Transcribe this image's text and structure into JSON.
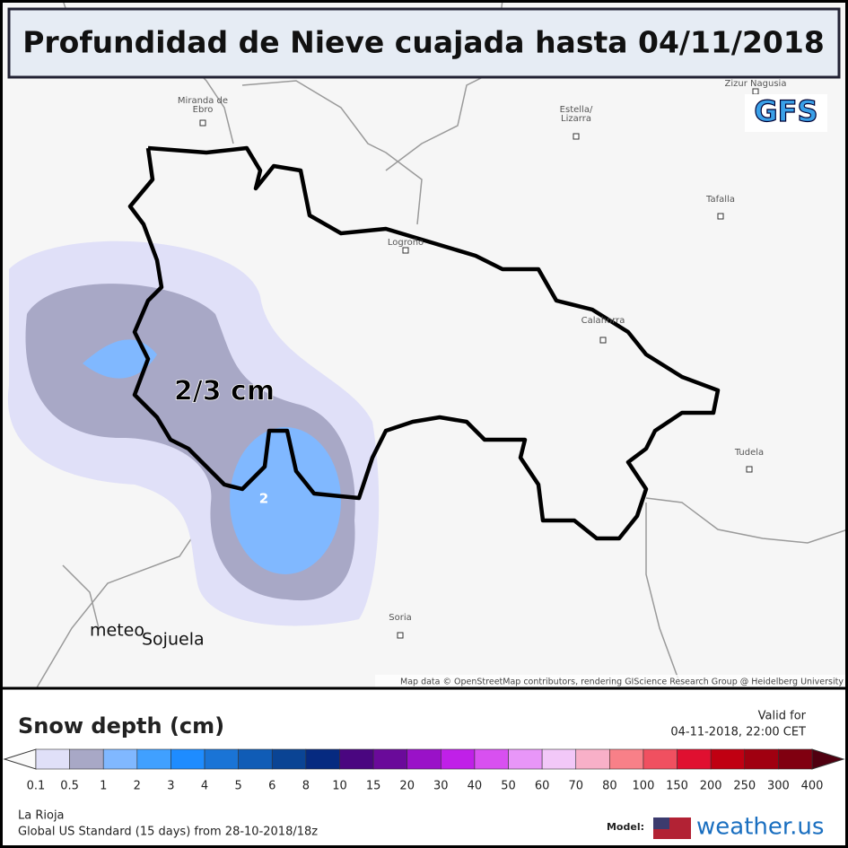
{
  "header": {
    "title": "Profundidad de Nieve cuajada hasta 04/11/2018",
    "model_badge": "GFS"
  },
  "map": {
    "cities": [
      {
        "label": "Miranda de Ebro"
      },
      {
        "label": "Estella/ Lizarra"
      },
      {
        "label": "Zizur Nagusia"
      },
      {
        "label": "Tafalla"
      },
      {
        "label": "Logroño"
      },
      {
        "label": "Calahorra"
      },
      {
        "label": "Tudela"
      },
      {
        "label": "Soria"
      }
    ],
    "annotation": "2/3 cm",
    "contour_label": "2",
    "watermark": [
      "meteo",
      "Sojuela"
    ],
    "attribution": "Map data © OpenStreetMap contributors, rendering GIScience Research Group @ Heidelberg University"
  },
  "legend": {
    "title": "Snow depth (cm)",
    "valid_label": "Valid for",
    "valid_time": "04-11-2018, 22:00 CET",
    "ticks": [
      0.1,
      0.5,
      1,
      2,
      3,
      4,
      5,
      6,
      8,
      10,
      15,
      20,
      30,
      40,
      50,
      60,
      70,
      80,
      100,
      150,
      200,
      250,
      300,
      400
    ],
    "colors": [
      "#e0e0f8",
      "#a8a8c6",
      "#80b8ff",
      "#40a0ff",
      "#1e8cff",
      "#1a74d6",
      "#105cb6",
      "#0a4494",
      "#062a80",
      "#4a0680",
      "#6a0a9a",
      "#9a12c8",
      "#c020e8",
      "#d850f0",
      "#e896f8",
      "#f2c8f8",
      "#f8b0c8",
      "#f88088",
      "#f05060",
      "#e01030",
      "#c00012",
      "#a00010",
      "#800010"
    ],
    "region": "La Rioja",
    "run": "Global US Standard (15 days) from 28-10-2018/18z",
    "model_label": "Model:",
    "brand": "weather.us"
  }
}
